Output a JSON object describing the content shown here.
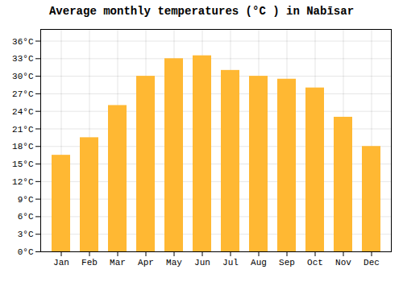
{
  "chart_data": {
    "type": "bar",
    "title": "Average monthly temperatures (°C ) in Nabīsar",
    "categories": [
      "Jan",
      "Feb",
      "Mar",
      "Apr",
      "May",
      "Jun",
      "Jul",
      "Aug",
      "Sep",
      "Oct",
      "Nov",
      "Dec"
    ],
    "values": [
      16.5,
      19.5,
      25.0,
      30.0,
      33.0,
      33.5,
      31.0,
      30.0,
      29.5,
      28.0,
      23.0,
      18.0
    ],
    "color": "#FFB833",
    "ylim": [
      0,
      38
    ],
    "yticks": [
      {
        "value": 0,
        "label": "0°C"
      },
      {
        "value": 3,
        "label": "3°C"
      },
      {
        "value": 6,
        "label": "6°C"
      },
      {
        "value": 9,
        "label": "9°C"
      },
      {
        "value": 12,
        "label": "12°C"
      },
      {
        "value": 15,
        "label": "15°C"
      },
      {
        "value": 18,
        "label": "18°C"
      },
      {
        "value": 21,
        "label": "21°C"
      },
      {
        "value": 24,
        "label": "24°C"
      },
      {
        "value": 27,
        "label": "27°C"
      },
      {
        "value": 30,
        "label": "30°C"
      },
      {
        "value": 33,
        "label": "33°C"
      },
      {
        "value": 36,
        "label": "36°C"
      }
    ],
    "grid": true
  }
}
